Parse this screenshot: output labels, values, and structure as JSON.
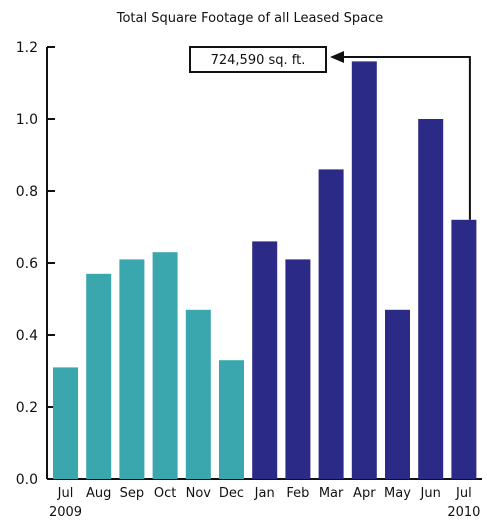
{
  "colors": {
    "series_2009": "#3aa6ad",
    "series_2010": "#2b2a86",
    "axis": "#111111",
    "callout_border": "#111111"
  },
  "chart_data": {
    "type": "bar",
    "title": "Total Square Footage of all Leased Space",
    "xlabel": "",
    "ylabel": "",
    "ylim": [
      0,
      1.2
    ],
    "yticks": [
      "0.0",
      "0.2",
      "0.4",
      "0.6",
      "0.8",
      "1.0",
      "1.2"
    ],
    "grid": false,
    "categories": [
      "Jul",
      "Aug",
      "Sep",
      "Oct",
      "Nov",
      "Dec",
      "Jan",
      "Feb",
      "Mar",
      "Apr",
      "May",
      "Jun",
      "Jul"
    ],
    "values": [
      0.31,
      0.57,
      0.61,
      0.63,
      0.47,
      0.33,
      0.66,
      0.61,
      0.86,
      1.16,
      0.47,
      1.0,
      0.72
    ],
    "year_labels": [
      {
        "text": "2009",
        "category_index": 0
      },
      {
        "text": "2010",
        "category_index": 12
      }
    ],
    "bar_groups": [
      {
        "name": "2009",
        "from": 0,
        "to": 5,
        "color_key": "series_2009"
      },
      {
        "name": "2010",
        "from": 6,
        "to": 12,
        "color_key": "series_2010"
      }
    ],
    "annotation": {
      "text": "724,590 sq. ft.",
      "points_to_category_index": 12
    }
  }
}
